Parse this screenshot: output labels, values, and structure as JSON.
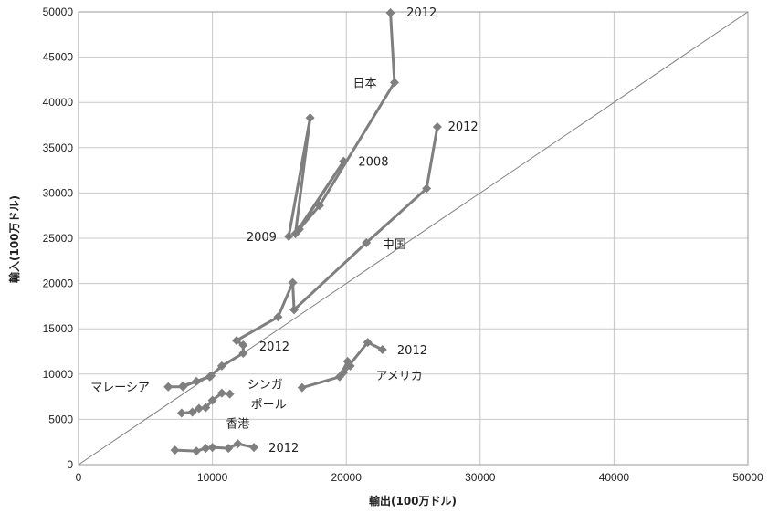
{
  "chart_data": {
    "type": "scatter",
    "xlabel": "輸出(100万ドル)",
    "ylabel": "輸入(100万ドル)",
    "xlim": [
      0,
      50000
    ],
    "ylim": [
      0,
      50000
    ],
    "xticks": [
      0,
      10000,
      20000,
      30000,
      40000,
      50000
    ],
    "yticks": [
      0,
      5000,
      10000,
      15000,
      20000,
      25000,
      30000,
      35000,
      40000,
      45000,
      50000
    ],
    "grid": true,
    "line_color": "#7f7f7f",
    "diagonal_color": "#7f7f7f",
    "series": [
      {
        "label": "日本",
        "values": [
          [
            15700,
            25200
          ],
          [
            17300,
            38300
          ],
          [
            16200,
            25500
          ],
          [
            19800,
            33500
          ],
          [
            16500,
            26000
          ],
          [
            18000,
            28600
          ],
          [
            23600,
            42200
          ],
          [
            23300,
            49900
          ]
        ]
      },
      {
        "label": "中国",
        "values": [
          [
            7800,
            8700
          ],
          [
            9800,
            9700
          ],
          [
            10700,
            10900
          ],
          [
            12300,
            12300
          ],
          [
            12300,
            13200
          ],
          [
            11800,
            13700
          ],
          [
            14900,
            16300
          ],
          [
            16000,
            20100
          ],
          [
            16100,
            17100
          ],
          [
            21500,
            24500
          ],
          [
            26000,
            30500
          ],
          [
            26800,
            37300
          ]
        ]
      },
      {
        "label": "シンガポール",
        "values": [
          [
            7700,
            5700
          ],
          [
            8500,
            5800
          ],
          [
            9000,
            6200
          ],
          [
            9500,
            6300
          ],
          [
            10000,
            7100
          ],
          [
            10700,
            7900
          ],
          [
            11300,
            7800
          ]
        ]
      },
      {
        "label": "マレーシア",
        "values": [
          [
            6700,
            8600
          ],
          [
            7800,
            8600
          ],
          [
            8800,
            9200
          ],
          [
            9900,
            9800
          ]
        ]
      },
      {
        "label": "アメリカ",
        "values": [
          [
            16700,
            8500
          ],
          [
            19500,
            9700
          ],
          [
            20100,
            11400
          ],
          [
            20300,
            10900
          ],
          [
            19800,
            10200
          ],
          [
            21600,
            13500
          ],
          [
            22700,
            12700
          ]
        ]
      },
      {
        "label": "香港",
        "values": [
          [
            7200,
            1600
          ],
          [
            8800,
            1500
          ],
          [
            9500,
            1800
          ],
          [
            10000,
            1900
          ],
          [
            11200,
            1800
          ],
          [
            11900,
            2300
          ],
          [
            13100,
            1900
          ]
        ]
      }
    ],
    "annotations": [
      {
        "text": "2012",
        "x": 24500,
        "y": 49500,
        "anchor": "start"
      },
      {
        "text": "日本",
        "x": 20500,
        "y": 41700,
        "anchor": "start"
      },
      {
        "text": "2012",
        "x": 27600,
        "y": 36900,
        "anchor": "start"
      },
      {
        "text": "2008",
        "x": 20900,
        "y": 33000,
        "anchor": "start"
      },
      {
        "text": "2009",
        "x": 14800,
        "y": 24700,
        "anchor": "end"
      },
      {
        "text": "中国",
        "x": 22700,
        "y": 23900,
        "anchor": "start"
      },
      {
        "text": "2012",
        "x": 13500,
        "y": 12600,
        "anchor": "start"
      },
      {
        "text": "2012",
        "x": 23800,
        "y": 12200,
        "anchor": "start"
      },
      {
        "text": "マレーシア",
        "x": 900,
        "y": 8100,
        "anchor": "start"
      },
      {
        "text": "シンガ",
        "x": 12600,
        "y": 8400,
        "anchor": "start"
      },
      {
        "text": "アメリカ",
        "x": 22200,
        "y": 9400,
        "anchor": "start"
      },
      {
        "text": "ポール",
        "x": 14200,
        "y": 6200,
        "anchor": "middle"
      },
      {
        "text": "香港",
        "x": 11000,
        "y": 4100,
        "anchor": "start"
      },
      {
        "text": "2012",
        "x": 14200,
        "y": 1400,
        "anchor": "start"
      }
    ]
  }
}
